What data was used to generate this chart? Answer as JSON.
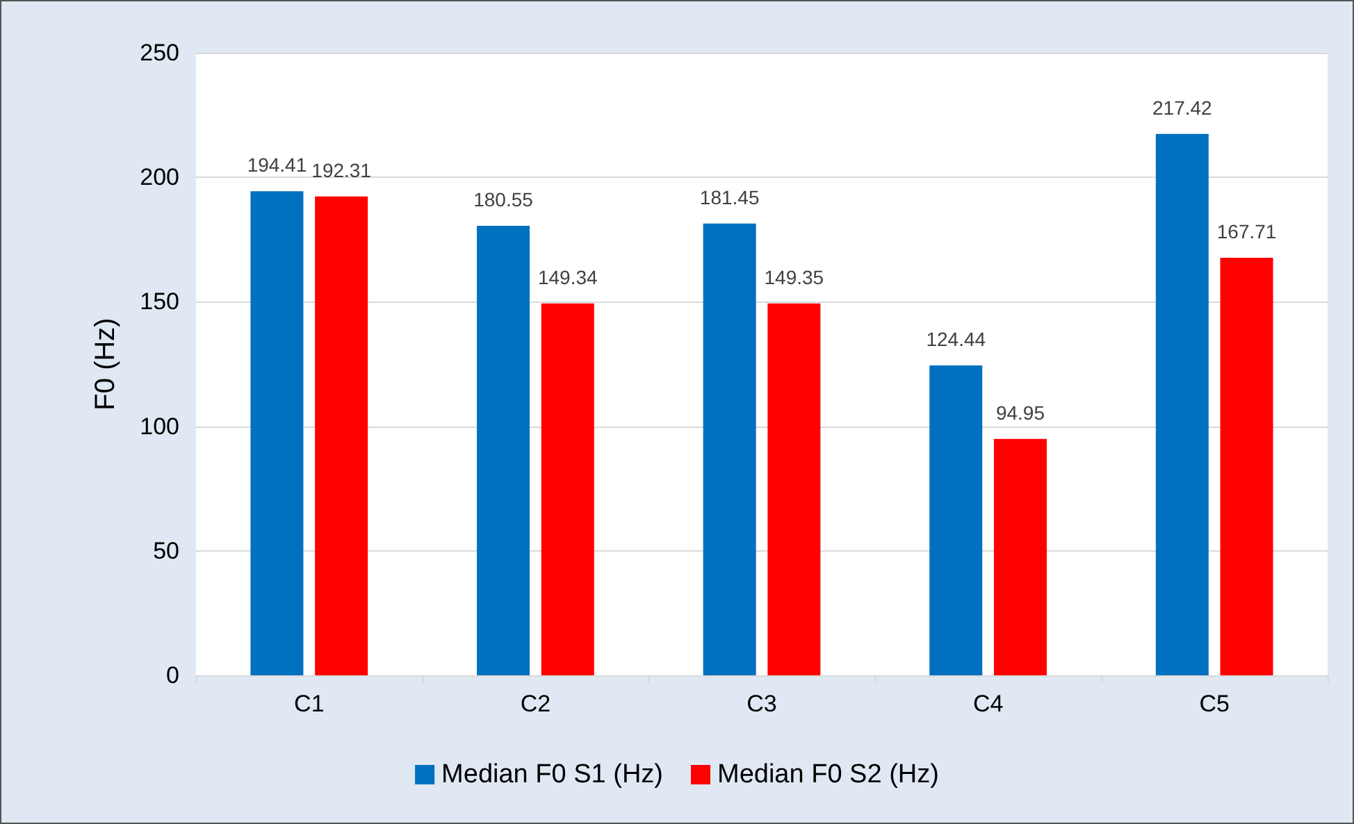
{
  "chart_data": {
    "type": "bar",
    "ylabel": "F0 (Hz)",
    "categories": [
      "C1",
      "C2",
      "C3",
      "C4",
      "C5"
    ],
    "series": [
      {
        "name": "Median F0 S1 (Hz)",
        "color": "#0070c0",
        "values": [
          194.41,
          180.55,
          181.45,
          124.44,
          217.42
        ]
      },
      {
        "name": "Median F0 S2 (Hz)",
        "color": "#ff0000",
        "values": [
          192.31,
          149.34,
          149.35,
          94.95,
          167.71
        ]
      }
    ],
    "ylim": [
      0,
      250
    ],
    "yticks": [
      0,
      50,
      100,
      150,
      200,
      250
    ],
    "grid": "y",
    "legend": "bottom",
    "data_labels": true
  }
}
